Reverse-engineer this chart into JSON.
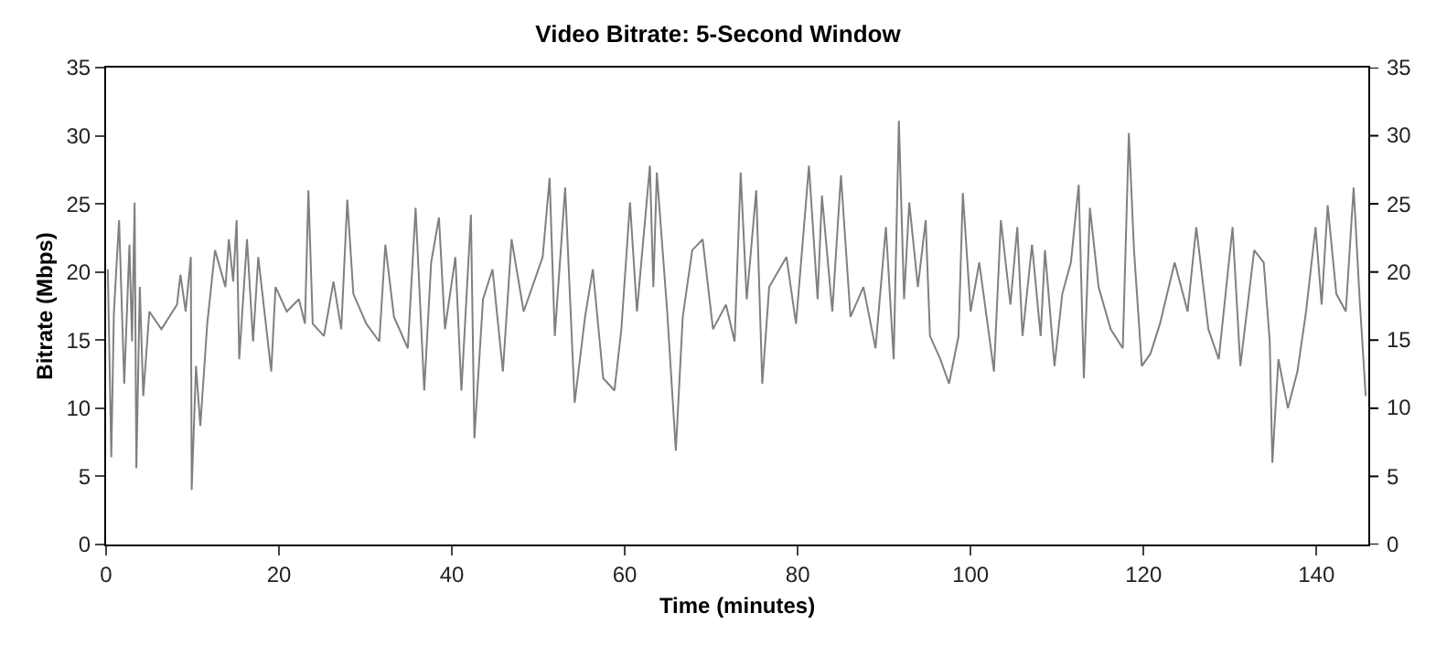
{
  "chart_data": {
    "type": "line",
    "title": "Video Bitrate: 5-Second Window",
    "xlabel": "Time (minutes)",
    "ylabel": "Bitrate (Mbps)",
    "xlim": [
      0,
      146
    ],
    "xticks": [
      0,
      20,
      40,
      60,
      80,
      100,
      120,
      140
    ],
    "ylim": [
      0,
      35
    ],
    "yticks": [
      0,
      5,
      10,
      15,
      20,
      25,
      30,
      35
    ],
    "y2lim": [
      0,
      35
    ],
    "y2ticks": [
      0,
      5,
      10,
      15,
      20,
      25,
      30,
      35
    ],
    "marker": "none",
    "line_style": "solid",
    "series": [
      {
        "color": "#808080",
        "x": [
          0.2,
          0.6,
          0.9,
          1.5,
          2.1,
          2.7,
          3.0,
          3.3,
          3.5,
          3.9,
          4.3,
          5.0,
          6.4,
          8.2,
          8.6,
          9.2,
          9.8,
          9.9,
          10.4,
          10.9,
          11.7,
          12.6,
          13.8,
          14.2,
          14.7,
          15.1,
          15.4,
          16.3,
          17.0,
          17.6,
          19.1,
          19.6,
          20.9,
          22.3,
          23.0,
          23.4,
          23.9,
          25.2,
          26.3,
          27.2,
          27.9,
          28.6,
          30.1,
          31.6,
          32.3,
          33.3,
          34.9,
          35.8,
          36.8,
          37.6,
          38.5,
          39.2,
          40.4,
          41.1,
          42.2,
          42.6,
          43.6,
          44.7,
          45.9,
          46.9,
          48.3,
          50.5,
          51.3,
          51.9,
          53.1,
          54.2,
          55.4,
          56.3,
          57.5,
          58.8,
          59.6,
          60.6,
          61.4,
          62.9,
          63.3,
          63.7,
          64.9,
          65.9,
          66.7,
          67.8,
          69.0,
          70.2,
          71.7,
          72.7,
          73.4,
          74.1,
          75.2,
          75.9,
          76.7,
          78.7,
          79.8,
          81.3,
          82.3,
          82.8,
          84.0,
          85.0,
          86.1,
          87.6,
          89.0,
          90.2,
          91.1,
          91.7,
          92.3,
          92.9,
          93.9,
          94.8,
          95.3,
          96.5,
          97.5,
          98.6,
          99.1,
          100.0,
          101.0,
          102.7,
          103.5,
          104.6,
          105.4,
          106.0,
          107.1,
          108.1,
          108.6,
          109.7,
          110.6,
          111.6,
          112.5,
          113.1,
          113.8,
          114.8,
          116.2,
          117.6,
          118.3,
          118.9,
          119.8,
          120.8,
          121.9,
          123.6,
          125.1,
          126.1,
          127.5,
          128.7,
          130.3,
          131.2,
          132.8,
          133.9,
          134.6,
          134.9,
          135.6,
          136.7,
          137.8,
          138.8,
          139.9,
          140.6,
          141.3,
          142.3,
          143.4,
          144.3,
          145.0,
          145.7
        ],
        "values": [
          20.2,
          6.4,
          17,
          23.8,
          11.8,
          22,
          14.9,
          25.1,
          5.6,
          18.9,
          10.9,
          17.1,
          15.8,
          17.6,
          19.8,
          17.1,
          21.1,
          4.0,
          13.1,
          8.7,
          16.2,
          21.6,
          18.9,
          22.4,
          19.3,
          23.8,
          13.6,
          22.4,
          14.9,
          21.1,
          12.7,
          18.9,
          17.1,
          18,
          16.2,
          26,
          16.2,
          15.3,
          19.3,
          15.8,
          25.3,
          18.4,
          16.2,
          14.9,
          22,
          16.7,
          14.4,
          24.7,
          11.3,
          20.7,
          24,
          15.8,
          21.1,
          11.3,
          24.2,
          7.8,
          18,
          20.2,
          12.7,
          22.4,
          17.1,
          21.1,
          26.9,
          15.3,
          26.2,
          10.4,
          16.7,
          20.2,
          12.2,
          11.3,
          15.8,
          25.1,
          17.1,
          27.8,
          18.9,
          27.3,
          17.1,
          6.9,
          16.7,
          21.6,
          22.4,
          15.8,
          17.6,
          14.9,
          27.3,
          18,
          26,
          11.8,
          18.9,
          21.1,
          16.2,
          27.8,
          18,
          25.6,
          17.1,
          27.1,
          16.7,
          18.9,
          14.4,
          23.3,
          13.6,
          31.1,
          18,
          25.1,
          18.9,
          23.8,
          15.3,
          13.6,
          11.8,
          15.3,
          25.8,
          17.1,
          20.7,
          12.7,
          23.8,
          17.6,
          23.3,
          15.3,
          22,
          15.3,
          21.6,
          13.1,
          18.4,
          20.7,
          26.4,
          12.2,
          24.7,
          18.9,
          15.8,
          14.4,
          30.2,
          21.6,
          13.1,
          14,
          16.2,
          20.7,
          17.1,
          23.3,
          15.8,
          13.6,
          23.3,
          13.1,
          21.6,
          20.7,
          14.9,
          6.0,
          13.6,
          10,
          12.7,
          17.1,
          23.3,
          17.6,
          24.9,
          18.4,
          17.1,
          26.2,
          18,
          10.9
        ]
      }
    ]
  }
}
